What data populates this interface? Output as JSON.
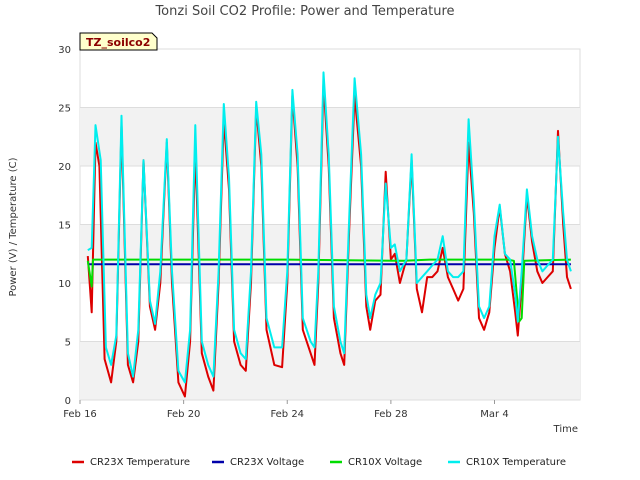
{
  "chart_data": {
    "type": "line",
    "title": "Tonzi Soil CO2 Profile: Power and Temperature",
    "xlabel": "Time",
    "ylabel": "Power (V) / Temperature (C)",
    "site_label": "TZ_soilco2",
    "ylim": [
      0,
      30
    ],
    "xlim_days_labels": [
      "Feb 16",
      "Feb 20",
      "Feb 24",
      "Feb 28",
      "Mar 4"
    ],
    "yticks": [
      0,
      5,
      10,
      15,
      20,
      25,
      30
    ],
    "grid": "horizontal bands",
    "legend_position": "bottom",
    "x_dates": [
      "2024-02-16",
      "2024-02-17",
      "2024-02-18",
      "2024-02-19",
      "2024-02-20",
      "2024-02-21",
      "2024-02-22",
      "2024-02-23",
      "2024-02-24",
      "2024-02-25",
      "2024-02-26",
      "2024-02-27",
      "2024-02-28",
      "2024-02-29",
      "2024-03-01",
      "2024-03-02",
      "2024-03-03",
      "2024-03-04",
      "2024-03-05"
    ],
    "series": [
      {
        "name": "CR23X Temperature",
        "color": "#dd0000",
        "points": [
          [
            16.3,
            12.3
          ],
          [
            16.45,
            7.5
          ],
          [
            16.6,
            22.0
          ],
          [
            16.75,
            20.0
          ],
          [
            16.95,
            3.5
          ],
          [
            17.2,
            1.5
          ],
          [
            17.4,
            5
          ],
          [
            17.6,
            23.5
          ],
          [
            17.85,
            3
          ],
          [
            18.05,
            1.5
          ],
          [
            18.25,
            5
          ],
          [
            18.45,
            20.5
          ],
          [
            18.7,
            8.0
          ],
          [
            18.9,
            6
          ],
          [
            19.1,
            10
          ],
          [
            19.35,
            22.0
          ],
          [
            19.55,
            10
          ],
          [
            19.8,
            1.5
          ],
          [
            20.05,
            0.3
          ],
          [
            20.25,
            5
          ],
          [
            20.45,
            21.5
          ],
          [
            20.7,
            4
          ],
          [
            20.95,
            2
          ],
          [
            21.15,
            0.8
          ],
          [
            21.35,
            10
          ],
          [
            21.55,
            24
          ],
          [
            21.75,
            18
          ],
          [
            21.95,
            5
          ],
          [
            22.2,
            3
          ],
          [
            22.4,
            2.5
          ],
          [
            22.6,
            10
          ],
          [
            22.8,
            25
          ],
          [
            23.0,
            20
          ],
          [
            23.2,
            6
          ],
          [
            23.5,
            3
          ],
          [
            23.8,
            2.8
          ],
          [
            24.0,
            10
          ],
          [
            24.2,
            26
          ],
          [
            24.4,
            20
          ],
          [
            24.6,
            6
          ],
          [
            24.9,
            4
          ],
          [
            25.05,
            3
          ],
          [
            25.2,
            10
          ],
          [
            25.4,
            27
          ],
          [
            25.6,
            20
          ],
          [
            25.8,
            7
          ],
          [
            26.05,
            4
          ],
          [
            26.2,
            3
          ],
          [
            26.4,
            15
          ],
          [
            26.6,
            26
          ],
          [
            26.85,
            20
          ],
          [
            27.05,
            8
          ],
          [
            27.2,
            6
          ],
          [
            27.4,
            8.5
          ],
          [
            27.6,
            9
          ],
          [
            27.8,
            19.5
          ],
          [
            28.0,
            12
          ],
          [
            28.15,
            12.5
          ],
          [
            28.35,
            10
          ],
          [
            28.6,
            12
          ],
          [
            28.8,
            20.5
          ],
          [
            29.0,
            9.5
          ],
          [
            29.2,
            7.5
          ],
          [
            29.4,
            10.5
          ],
          [
            29.6,
            10.5
          ],
          [
            29.8,
            11
          ],
          [
            30.0,
            13
          ],
          [
            30.2,
            10.5
          ],
          [
            30.4,
            9.5
          ],
          [
            30.6,
            8.5
          ],
          [
            30.8,
            9.5
          ],
          [
            31.0,
            22
          ],
          [
            31.2,
            16
          ],
          [
            31.4,
            7
          ],
          [
            31.6,
            6
          ],
          [
            31.8,
            7.5
          ],
          [
            32.0,
            13
          ],
          [
            32.2,
            16.5
          ],
          [
            32.4,
            12.5
          ],
          [
            32.6,
            11
          ],
          [
            32.8,
            7.5
          ],
          [
            32.9,
            5.5
          ],
          [
            33.05,
            10
          ],
          [
            33.25,
            17.5
          ],
          [
            33.45,
            13.5
          ],
          [
            33.65,
            11
          ],
          [
            33.85,
            10
          ],
          [
            34.05,
            10.5
          ],
          [
            34.25,
            11
          ],
          [
            34.45,
            23
          ],
          [
            34.65,
            15
          ],
          [
            34.8,
            10.5
          ],
          [
            34.95,
            9.5
          ]
        ]
      },
      {
        "name": "CR23X Voltage",
        "color": "#0000aa",
        "points": [
          [
            16.3,
            11.6
          ],
          [
            34.95,
            11.6
          ]
        ]
      },
      {
        "name": "CR10X Voltage",
        "color": "#00dd00",
        "points": [
          [
            16.3,
            11.9
          ],
          [
            16.45,
            9.7
          ],
          [
            16.5,
            12.0
          ],
          [
            24.0,
            12.0
          ],
          [
            28.5,
            11.9
          ],
          [
            29.5,
            12.0
          ],
          [
            32.5,
            12.0
          ],
          [
            32.75,
            11.9
          ],
          [
            32.95,
            6.7
          ],
          [
            33.05,
            7.0
          ],
          [
            33.15,
            11.9
          ],
          [
            34.95,
            12.0
          ]
        ]
      },
      {
        "name": "CR10X Temperature",
        "color": "#00eeee",
        "points": [
          [
            16.3,
            12.8
          ],
          [
            16.45,
            13.0
          ],
          [
            16.6,
            23.5
          ],
          [
            16.8,
            20.5
          ],
          [
            17.0,
            4.5
          ],
          [
            17.2,
            3.0
          ],
          [
            17.4,
            5.5
          ],
          [
            17.6,
            24.3
          ],
          [
            17.85,
            4
          ],
          [
            18.05,
            2.0
          ],
          [
            18.25,
            6
          ],
          [
            18.45,
            20.5
          ],
          [
            18.7,
            8.5
          ],
          [
            18.9,
            6.5
          ],
          [
            19.1,
            11
          ],
          [
            19.35,
            22.3
          ],
          [
            19.55,
            11
          ],
          [
            19.8,
            2.5
          ],
          [
            20.05,
            1.5
          ],
          [
            20.25,
            6
          ],
          [
            20.45,
            23.5
          ],
          [
            20.7,
            5
          ],
          [
            20.95,
            3
          ],
          [
            21.15,
            2.0
          ],
          [
            21.35,
            11
          ],
          [
            21.55,
            25.3
          ],
          [
            21.75,
            19
          ],
          [
            21.95,
            6
          ],
          [
            22.2,
            4
          ],
          [
            22.4,
            3.5
          ],
          [
            22.6,
            11
          ],
          [
            22.8,
            25.5
          ],
          [
            23.0,
            21
          ],
          [
            23.2,
            7
          ],
          [
            23.5,
            4.5
          ],
          [
            23.8,
            4.5
          ],
          [
            24.0,
            11
          ],
          [
            24.2,
            26.5
          ],
          [
            24.4,
            21
          ],
          [
            24.6,
            7
          ],
          [
            24.9,
            5
          ],
          [
            25.05,
            4.5
          ],
          [
            25.2,
            11
          ],
          [
            25.4,
            28
          ],
          [
            25.6,
            21
          ],
          [
            25.8,
            8
          ],
          [
            26.05,
            5
          ],
          [
            26.2,
            4
          ],
          [
            26.4,
            16
          ],
          [
            26.6,
            27.5
          ],
          [
            26.85,
            21
          ],
          [
            27.05,
            9
          ],
          [
            27.2,
            7
          ],
          [
            27.4,
            9
          ],
          [
            27.6,
            10
          ],
          [
            27.8,
            18.5
          ],
          [
            28.0,
            13
          ],
          [
            28.15,
            13.3
          ],
          [
            28.35,
            11
          ],
          [
            28.6,
            12
          ],
          [
            28.8,
            21
          ],
          [
            29.0,
            10
          ],
          [
            29.2,
            10.5
          ],
          [
            29.4,
            11
          ],
          [
            29.6,
            11.5
          ],
          [
            29.8,
            12
          ],
          [
            30.0,
            14
          ],
          [
            30.2,
            11
          ],
          [
            30.4,
            10.5
          ],
          [
            30.6,
            10.5
          ],
          [
            30.8,
            11
          ],
          [
            31.0,
            24
          ],
          [
            31.2,
            17
          ],
          [
            31.4,
            8
          ],
          [
            31.6,
            7
          ],
          [
            31.8,
            8
          ],
          [
            32.0,
            14
          ],
          [
            32.2,
            16.7
          ],
          [
            32.4,
            12.5
          ],
          [
            32.6,
            12
          ],
          [
            32.8,
            9
          ],
          [
            32.9,
            6.7
          ],
          [
            33.05,
            11
          ],
          [
            33.25,
            18
          ],
          [
            33.45,
            14
          ],
          [
            33.65,
            12
          ],
          [
            33.85,
            11
          ],
          [
            34.05,
            11.5
          ],
          [
            34.25,
            12
          ],
          [
            34.45,
            22.5
          ],
          [
            34.65,
            16
          ],
          [
            34.8,
            12
          ],
          [
            34.95,
            11
          ]
        ]
      }
    ]
  }
}
